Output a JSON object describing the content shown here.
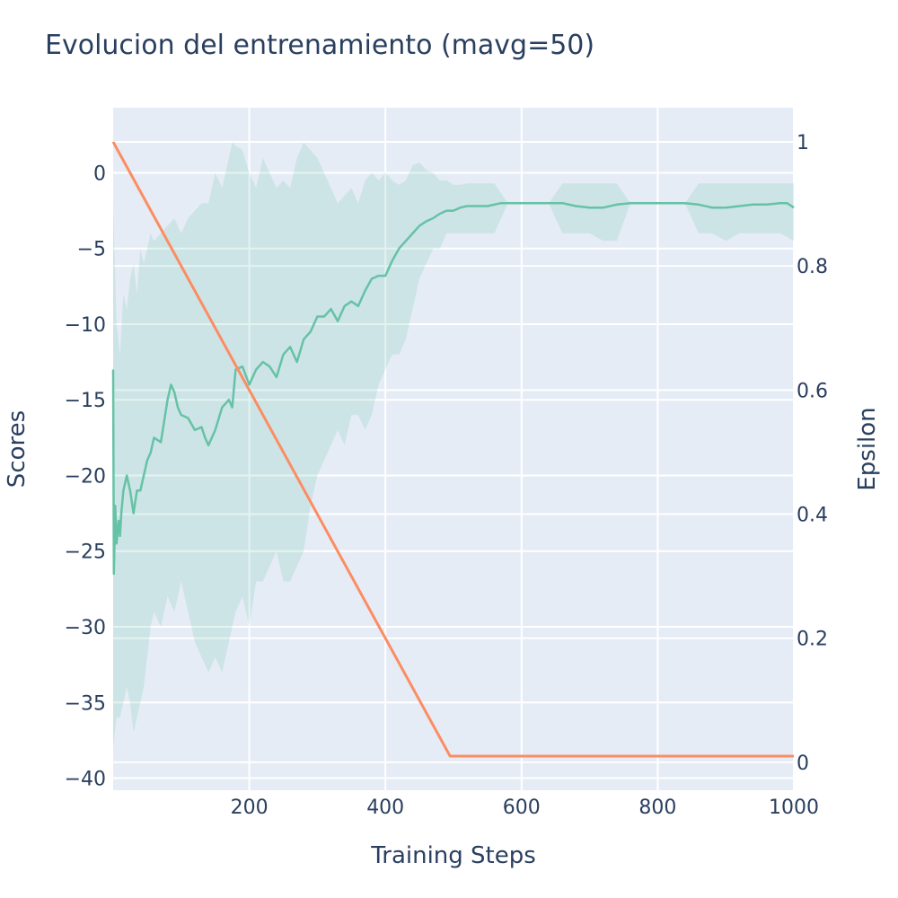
{
  "chart_data": {
    "type": "line",
    "title": "Evolucion del entrenamiento (mavg=50)",
    "xlabel": "Training Steps",
    "ylabel": "Scores",
    "y2label": "Epsilon",
    "xlim": [
      0,
      1000
    ],
    "ylim": [
      -40.8,
      4.3
    ],
    "y2lim": [
      -0.045,
      1.055
    ],
    "x_ticks": [
      200,
      400,
      600,
      800,
      1000
    ],
    "y_ticks": [
      0,
      -5,
      -10,
      -15,
      -20,
      -25,
      -30,
      -35,
      -40
    ],
    "y_tick_labels": [
      "0",
      "−5",
      "−10",
      "−15",
      "−20",
      "−25",
      "−30",
      "−35",
      "−40"
    ],
    "y2_ticks": [
      1,
      0.8,
      0.6,
      0.4,
      0.2,
      0
    ],
    "y2_tick_labels": [
      "1",
      "0.8",
      "0.6",
      "0.4",
      "0.2",
      "0"
    ],
    "grid": true,
    "series": [
      {
        "axis": "y",
        "color": "#66c2a5",
        "x": [
          0,
          1,
          3,
          5,
          8,
          10,
          12,
          15,
          20,
          25,
          30,
          35,
          40,
          45,
          50,
          55,
          60,
          70,
          80,
          85,
          90,
          95,
          100,
          110,
          120,
          130,
          135,
          140,
          150,
          160,
          170,
          175,
          180,
          190,
          200,
          210,
          220,
          230,
          240,
          250,
          260,
          270,
          280,
          290,
          300,
          310,
          320,
          330,
          340,
          350,
          360,
          370,
          380,
          390,
          400,
          410,
          420,
          430,
          440,
          450,
          460,
          470,
          480,
          490,
          500,
          510,
          520,
          530,
          540,
          550,
          560,
          570,
          580,
          590,
          600,
          620,
          640,
          660,
          680,
          700,
          720,
          740,
          760,
          780,
          800,
          820,
          840,
          860,
          880,
          900,
          920,
          940,
          960,
          980,
          990,
          1000
        ],
        "y": [
          -13,
          -26.5,
          -22,
          -24.5,
          -23,
          -24,
          -22.5,
          -21,
          -20,
          -21,
          -22.5,
          -21,
          -21,
          -20,
          -19,
          -18.5,
          -17.5,
          -17.8,
          -15,
          -14,
          -14.5,
          -15.5,
          -16,
          -16.2,
          -17,
          -16.8,
          -17.5,
          -18,
          -17,
          -15.5,
          -15,
          -15.5,
          -13,
          -12.8,
          -14,
          -13,
          -12.5,
          -12.8,
          -13.5,
          -12,
          -11.5,
          -12.5,
          -11,
          -10.5,
          -9.5,
          -9.5,
          -9,
          -9.8,
          -8.8,
          -8.5,
          -8.8,
          -7.8,
          -7,
          -6.8,
          -6.8,
          -5.8,
          -5,
          -4.5,
          -4,
          -3.5,
          -3.2,
          -3,
          -2.7,
          -2.5,
          -2.5,
          -2.3,
          -2.2,
          -2.2,
          -2.2,
          -2.2,
          -2.1,
          -2.0,
          -2.0,
          -2.0,
          -2.0,
          -2.0,
          -2.0,
          -2.0,
          -2.2,
          -2.3,
          -2.3,
          -2.1,
          -2.0,
          -2.0,
          -2.0,
          -2.0,
          -2.0,
          -2.1,
          -2.3,
          -2.3,
          -2.2,
          -2.1,
          -2.1,
          -2.0,
          -2.0,
          -2.3
        ]
      },
      {
        "axis": "y2",
        "color": "#fc8d62",
        "x": [
          0,
          495,
          1000
        ],
        "y": [
          1.0,
          0.01,
          0.01
        ]
      }
    ],
    "band": {
      "axis": "y",
      "color": "#66c2a5",
      "x": [
        0,
        5,
        10,
        15,
        20,
        25,
        30,
        35,
        40,
        45,
        50,
        55,
        60,
        70,
        80,
        90,
        100,
        110,
        120,
        130,
        140,
        150,
        160,
        170,
        175,
        180,
        190,
        200,
        210,
        220,
        230,
        240,
        250,
        260,
        270,
        280,
        290,
        300,
        310,
        320,
        330,
        340,
        350,
        360,
        370,
        380,
        390,
        400,
        410,
        420,
        430,
        440,
        450,
        460,
        470,
        480,
        490,
        500,
        510,
        520,
        530,
        540,
        550,
        560,
        580,
        600,
        620,
        640,
        660,
        680,
        700,
        720,
        740,
        760,
        780,
        800,
        820,
        840,
        860,
        880,
        900,
        920,
        940,
        960,
        980,
        1000
      ],
      "upper": [
        -2,
        -10,
        -12,
        -8,
        -9,
        -7,
        -6,
        -8,
        -5,
        -6,
        -5,
        -4,
        -4.5,
        -4,
        -3.5,
        -3,
        -4,
        -3,
        -2.5,
        -2,
        -2,
        0,
        -1,
        1,
        2,
        1.8,
        1.5,
        0,
        -1,
        1,
        0,
        -1,
        -0.5,
        -1,
        1,
        2,
        1.5,
        1,
        0,
        -1,
        -2,
        -1.5,
        -1,
        -2,
        -0.5,
        0,
        -0.5,
        0,
        -0.5,
        -0.8,
        -0.5,
        0.5,
        0.7,
        0.2,
        0,
        -0.5,
        -0.5,
        -0.8,
        -0.8,
        -0.7,
        -0.7,
        -0.7,
        -0.7,
        -0.7,
        -2,
        -2,
        -2,
        -2,
        -0.7,
        -0.7,
        -0.7,
        -0.7,
        -0.7,
        -2,
        -2,
        -2,
        -2,
        -2,
        -0.7,
        -0.7,
        -0.7,
        -0.7,
        -0.7,
        -0.7,
        -0.7,
        -0.7
      ],
      "lower": [
        -38,
        -36,
        -36,
        -35,
        -34,
        -35,
        -37,
        -36,
        -35,
        -34,
        -32,
        -30,
        -29,
        -30,
        -28,
        -29,
        -27,
        -29,
        -31,
        -32,
        -33,
        -32,
        -33,
        -31,
        -30,
        -29,
        -28,
        -30,
        -27,
        -27,
        -26,
        -25,
        -27,
        -27,
        -26,
        -25,
        -22,
        -20,
        -19,
        -18,
        -17,
        -18,
        -16,
        -16,
        -17,
        -16,
        -14,
        -13,
        -12,
        -12,
        -11,
        -9,
        -7,
        -6,
        -5,
        -5,
        -4,
        -4,
        -4,
        -4,
        -4,
        -4,
        -4,
        -4,
        -2,
        -2,
        -2,
        -2,
        -4,
        -4,
        -4,
        -4.5,
        -4.5,
        -2,
        -2,
        -2,
        -2,
        -2,
        -4,
        -4,
        -4.5,
        -4,
        -4,
        -4,
        -4,
        -4.5
      ]
    }
  }
}
